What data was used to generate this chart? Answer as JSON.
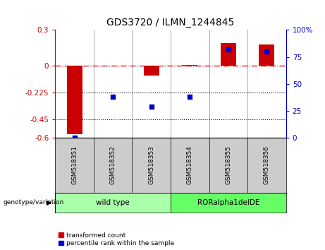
{
  "title": "GDS3720 / ILMN_1244845",
  "samples": [
    "GSM518351",
    "GSM518352",
    "GSM518353",
    "GSM518354",
    "GSM518355",
    "GSM518356"
  ],
  "bar_values": [
    -0.57,
    0.0,
    -0.08,
    0.01,
    0.19,
    0.18
  ],
  "scatter_values": [
    0.0,
    38,
    29,
    38,
    82,
    80
  ],
  "bar_color": "#cc0000",
  "scatter_color": "#0000cc",
  "ylim_left": [
    -0.6,
    0.3
  ],
  "ylim_right": [
    0,
    100
  ],
  "yticks_left": [
    -0.6,
    -0.45,
    -0.225,
    0.0,
    0.3
  ],
  "ytick_labels_left": [
    "-0.6",
    "-0.45",
    "-0.225",
    "0",
    "0.3"
  ],
  "yticks_right": [
    0,
    25,
    50,
    75,
    100
  ],
  "ytick_labels_right": [
    "0",
    "25",
    "50",
    "75",
    "100%"
  ],
  "hline_y": 0.0,
  "dotted_lines": [
    -0.225,
    -0.45
  ],
  "group1_label": "wild type",
  "group2_label": "RORalpha1delDE",
  "group1_indices": [
    0,
    1,
    2
  ],
  "group2_indices": [
    3,
    4,
    5
  ],
  "group1_color": "#aaffaa",
  "group2_color": "#66ff66",
  "genotype_label": "genotype/variation",
  "legend1": "transformed count",
  "legend2": "percentile rank within the sample",
  "background_color": "#ffffff",
  "label_bg": "#cccccc"
}
